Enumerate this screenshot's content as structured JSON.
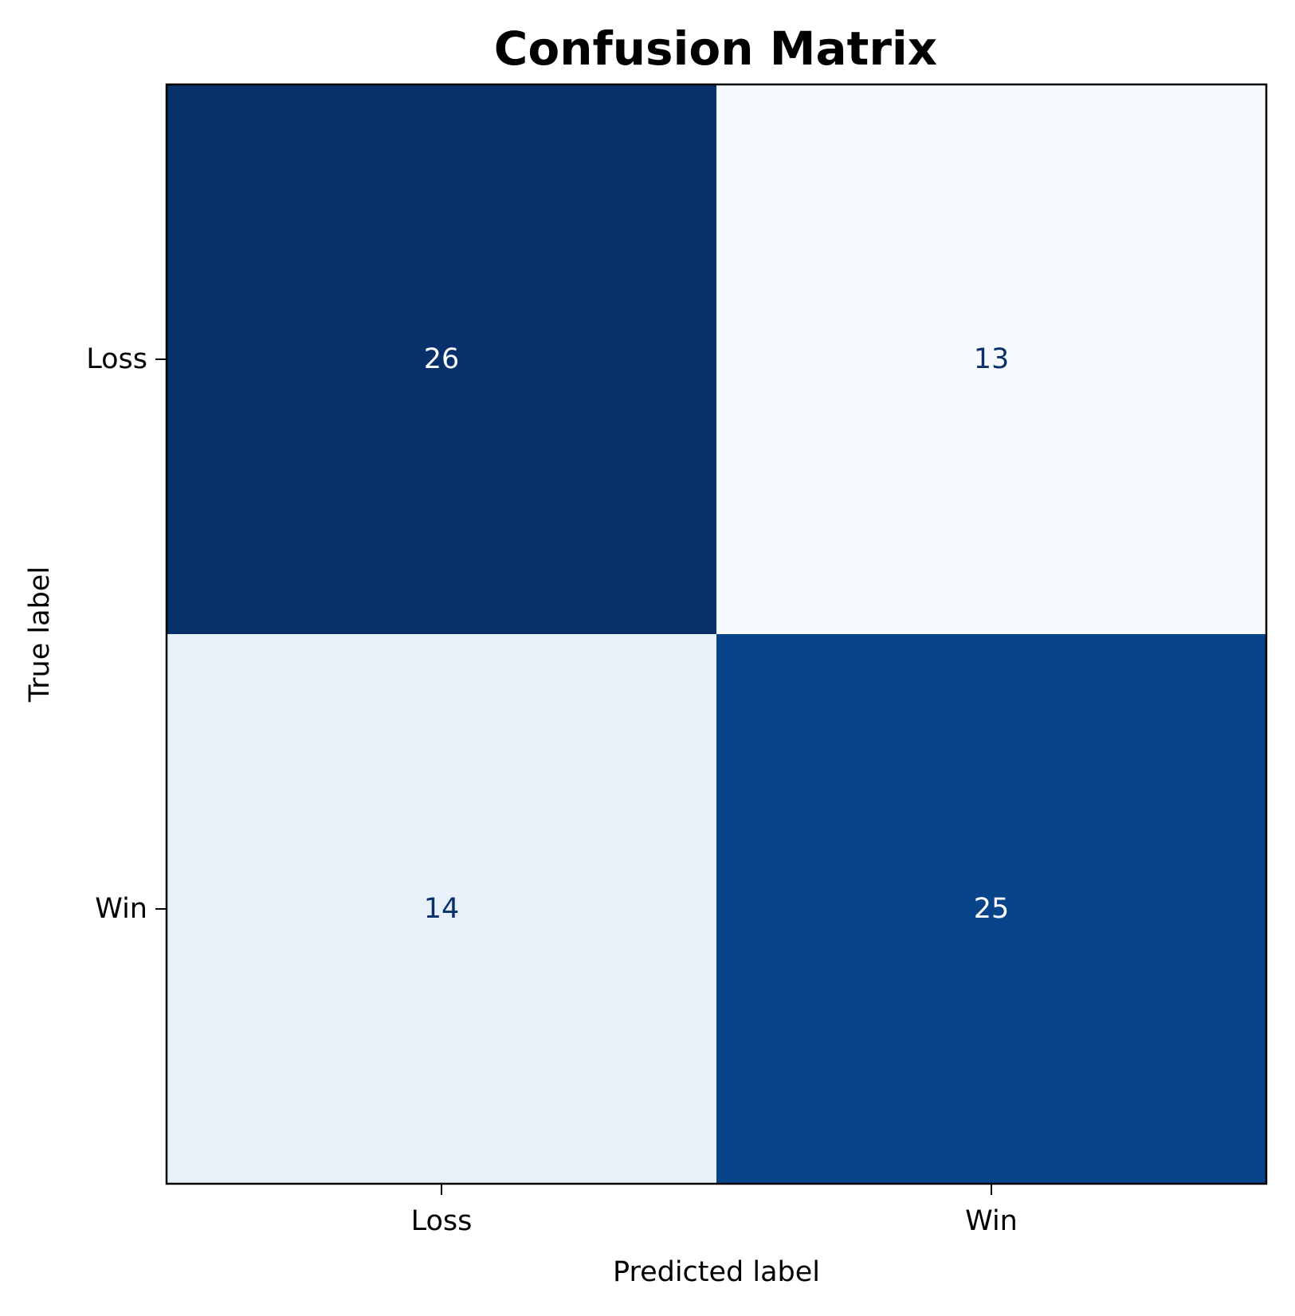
{
  "chart_data": {
    "type": "heatmap",
    "title": "Confusion Matrix",
    "xlabel": "Predicted label",
    "ylabel": "True label",
    "x_categories": [
      "Loss",
      "Win"
    ],
    "y_categories": [
      "Loss",
      "Win"
    ],
    "values": [
      [
        26,
        13
      ],
      [
        14,
        25
      ]
    ],
    "cell_labels": [
      [
        "26",
        "13"
      ],
      [
        "14",
        "25"
      ]
    ],
    "colormap": "Blues",
    "vmin": 13,
    "vmax": 26,
    "grid": false,
    "colors": {
      "cmap_low": "#f7fbff",
      "cmap_mid": "#6baed6",
      "cmap_high": "#08306b",
      "text_on_dark": "#ffffff",
      "text_on_light": "#08306b"
    }
  }
}
